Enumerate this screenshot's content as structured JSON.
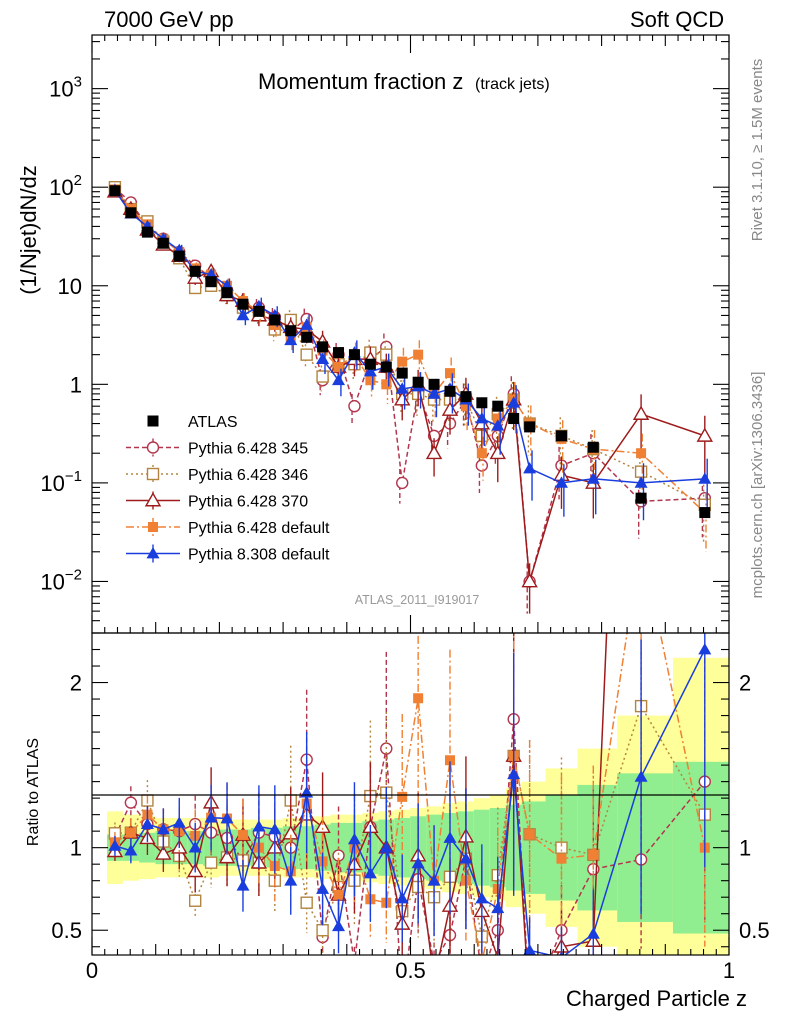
{
  "header": {
    "energy": "7000 GeV pp",
    "category": "Soft QCD"
  },
  "side": {
    "rivet": "Rivet 3.1.10, ≥ 1.5M events",
    "source": "mcplots.cern.ch [arXiv:1306.3436]"
  },
  "chart_data": {
    "type": "scatter",
    "title_main": "Momentum fraction z",
    "title_sub": "(track jets)",
    "analysis": "ATLAS_2011_I919017",
    "xlabel": "Charged Particle z",
    "ylabel": "(1/Njet)dN/dz",
    "ratio_ylabel": "Ratio to ATLAS",
    "xlim": [
      0,
      1
    ],
    "ylim": [
      0.003,
      3500
    ],
    "ratio_ylim": [
      0.35,
      2.3
    ],
    "yscale": "log",
    "x_ticks": [
      {
        "v": 0,
        "label": "0"
      },
      {
        "v": 0.5,
        "label": "0.5"
      },
      {
        "v": 1,
        "label": "1"
      }
    ],
    "y_ticks": [
      {
        "v": 0.01,
        "label": "10",
        "sup": "−2"
      },
      {
        "v": 0.1,
        "label": "10",
        "sup": "−1"
      },
      {
        "v": 1,
        "label": "1",
        "sup": ""
      },
      {
        "v": 10,
        "label": "10",
        "sup": ""
      },
      {
        "v": 100,
        "label": "10",
        "sup": "2"
      },
      {
        "v": 1000,
        "label": "10",
        "sup": "3"
      }
    ],
    "ratio_ticks": [
      {
        "v": 0.5,
        "label": "0.5"
      },
      {
        "v": 1,
        "label": "1"
      },
      {
        "v": 2,
        "label": "2"
      }
    ],
    "x": [
      0.036,
      0.061,
      0.087,
      0.112,
      0.137,
      0.162,
      0.187,
      0.212,
      0.237,
      0.262,
      0.287,
      0.312,
      0.337,
      0.362,
      0.387,
      0.412,
      0.437,
      0.462,
      0.487,
      0.512,
      0.537,
      0.562,
      0.587,
      0.612,
      0.637,
      0.662,
      0.687,
      0.737,
      0.787,
      0.862,
      0.962
    ],
    "reference": {
      "name": "ATLAS",
      "color": "#000000",
      "values": [
        92,
        55,
        35,
        27,
        20,
        14,
        11,
        8.5,
        6.5,
        5.5,
        4.5,
        3.5,
        3.0,
        2.4,
        2.1,
        2.0,
        1.6,
        1.5,
        1.3,
        1.05,
        1.0,
        0.85,
        0.75,
        0.65,
        0.6,
        0.45,
        0.37,
        0.3,
        0.23,
        0.07,
        0.05
      ],
      "band_inner": [
        0.08,
        0.08,
        0.09,
        0.1,
        0.1,
        0.1,
        0.11,
        0.11,
        0.11,
        0.12,
        0.12,
        0.13,
        0.13,
        0.14,
        0.15,
        0.15,
        0.16,
        0.17,
        0.18,
        0.19,
        0.2,
        0.21,
        0.22,
        0.23,
        0.24,
        0.26,
        0.28,
        0.32,
        0.38,
        0.45,
        0.52
      ],
      "band_outer": [
        0.22,
        0.2,
        0.19,
        0.18,
        0.18,
        0.18,
        0.18,
        0.17,
        0.17,
        0.17,
        0.17,
        0.18,
        0.18,
        0.19,
        0.2,
        0.2,
        0.21,
        0.22,
        0.23,
        0.24,
        0.25,
        0.27,
        0.28,
        0.3,
        0.32,
        0.36,
        0.4,
        0.48,
        0.6,
        0.8,
        1.15
      ]
    },
    "series": [
      {
        "name": "Pythia 6.428 345",
        "color": "#b3354d",
        "marker": "circle-open",
        "dash": "5,3",
        "values": [
          98,
          70,
          40,
          30,
          22,
          16,
          12,
          9,
          6,
          6,
          4.8,
          3.5,
          4.6,
          1.1,
          2.0,
          0.6,
          1.8,
          2.4,
          0.1,
          0.85,
          0.3,
          0.4,
          0.7,
          0.15,
          0.3,
          0.8,
          0.01,
          0.15,
          0.2,
          0.065,
          0.07
        ]
      },
      {
        "name": "Pythia 6.428 346",
        "color": "#b3843f",
        "marker": "square-open",
        "dash": "2,3",
        "values": [
          100,
          60,
          45,
          28,
          19,
          9.5,
          10,
          8,
          6,
          5,
          3.6,
          4.5,
          2.0,
          1.2,
          1.6,
          1.6,
          2.1,
          2.0,
          0.8,
          0.8,
          0.7,
          0.7,
          0.7,
          0.3,
          0.5,
          0.7,
          0.4,
          0.3,
          0.22,
          0.13,
          0.06
        ]
      },
      {
        "name": "Pythia 6.428 370",
        "color": "#9e1b1b",
        "marker": "triangle-open",
        "dash": "",
        "values": [
          90,
          60,
          37,
          26,
          20,
          12,
          14,
          8,
          7,
          5,
          4.5,
          3.8,
          3.6,
          2.7,
          1.5,
          1.8,
          1.8,
          1.5,
          0.7,
          1.0,
          0.2,
          0.55,
          0.8,
          0.4,
          0.2,
          0.7,
          0.01,
          0.12,
          0.1,
          0.5,
          0.3
        ]
      },
      {
        "name": "Pythia 6.428 default",
        "color": "#f08033",
        "marker": "square",
        "dash": "8,3,2,3",
        "values": [
          95,
          60,
          42,
          30,
          22,
          15,
          13,
          10,
          7,
          5.5,
          4,
          3,
          3.8,
          2.2,
          1.5,
          2.0,
          1.1,
          1.0,
          1.7,
          2.0,
          0.8,
          1.3,
          0.6,
          0.2,
          0.45,
          0.7,
          0.4,
          0.28,
          0.22,
          0.2,
          0.05
        ]
      },
      {
        "name": "Pythia 8.308 default",
        "color": "#1a3ede",
        "marker": "triangle",
        "dash": "",
        "values": [
          93,
          54,
          40,
          30,
          23,
          14,
          13,
          10,
          5,
          6.2,
          5,
          2.8,
          4.0,
          1.8,
          1.1,
          2.1,
          1.35,
          1.5,
          0.9,
          0.95,
          0.8,
          0.9,
          0.7,
          0.45,
          0.38,
          0.65,
          0.14,
          0.1,
          0.11,
          0.1,
          0.11
        ]
      }
    ]
  }
}
